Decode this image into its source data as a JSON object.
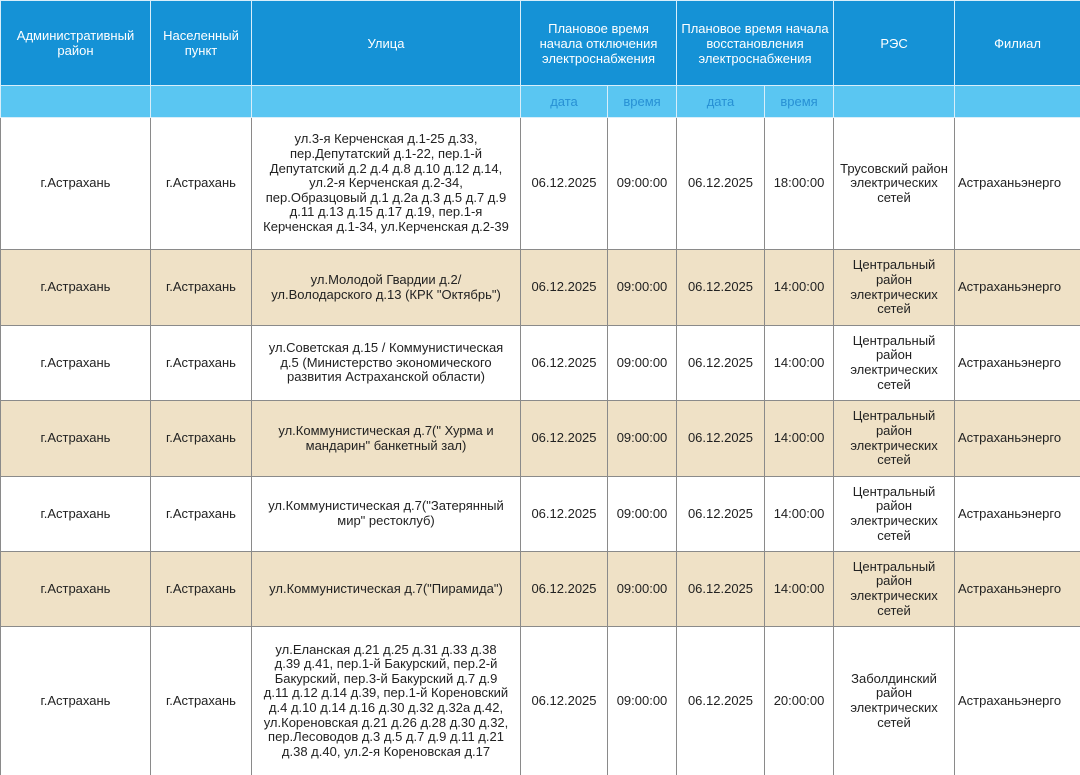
{
  "table": {
    "header": [
      "Административный район",
      "Населенный пункт",
      "Улица",
      "Плановое время начала отключения электроснабжения",
      "Плановое время начала восстановления электроснабжения",
      "РЭС",
      "Филиал"
    ],
    "subheader": [
      "дата",
      "время",
      "дата",
      "время"
    ],
    "rows": [
      [
        "г.Астрахань",
        "г.Астрахань",
        "ул.3-я Керченская д.1-25 д.33, пер.Депутатский д.1-22, пер.1-й Депутатский д.2 д.4 д.8 д.10 д.12 д.14, ул.2-я Керченская д.2-34, пер.Образцовый д.1 д.2а д.3 д.5 д.7 д.9 д.11 д.13 д.15 д.17 д.19, пер.1-я Керченская д.1-34, ул.Керченская д.2-39",
        "06.12.2025",
        "09:00:00",
        "06.12.2025",
        "18:00:00",
        "Трусовский район электрических сетей",
        "Астраханьэнерго"
      ],
      [
        "г.Астрахань",
        "г.Астрахань",
        "ул.Молодой Гвардии д.2/ ул.Володарского д.13 (КРК \"Октябрь\")",
        "06.12.2025",
        "09:00:00",
        "06.12.2025",
        "14:00:00",
        "Центральный район электрических сетей",
        "Астраханьэнерго"
      ],
      [
        "г.Астрахань",
        "г.Астрахань",
        "ул.Советская д.15 / Коммунистическая д.5 (Министерство экономического развития Астраханской области)",
        "06.12.2025",
        "09:00:00",
        "06.12.2025",
        "14:00:00",
        "Центральный район электрических сетей",
        "Астраханьэнерго"
      ],
      [
        "г.Астрахань",
        "г.Астрахань",
        "ул.Коммунистическая д.7(\" Хурма и мандарин\" банкетный зал)",
        "06.12.2025",
        "09:00:00",
        "06.12.2025",
        "14:00:00",
        "Центральный район электрических сетей",
        "Астраханьэнерго"
      ],
      [
        "г.Астрахань",
        "г.Астрахань",
        "ул.Коммунистическая д.7(\"Затерянный мир\" рестоклуб)",
        "06.12.2025",
        "09:00:00",
        "06.12.2025",
        "14:00:00",
        "Центральный район электрических сетей",
        "Астраханьэнерго"
      ],
      [
        "г.Астрахань",
        "г.Астрахань",
        "ул.Коммунистическая д.7(\"Пирамида\")",
        "06.12.2025",
        "09:00:00",
        "06.12.2025",
        "14:00:00",
        "Центральный район электрических сетей",
        "Астраханьэнерго"
      ],
      [
        "г.Астрахань",
        "г.Астрахань",
        "ул.Еланская д.21 д.25 д.31 д.33 д.38 д.39 д.41, пер.1-й Бакурский, пер.2-й Бакурский, пер.3-й Бакурский д.7 д.9 д.11 д.12 д.14 д.39, пер.1-й Кореновский д.4 д.10 д.14 д.16 д.30 д.32 д.32а д.42, ул.Кореновская д.21 д.26 д.28 д.30 д.32, пер.Лесоводов д.3 д.5 д.7 д.9 д.11 д.21 д.38 д.40, ул.2-я Кореновская д.17",
        "06.12.2025",
        "09:00:00",
        "06.12.2025",
        "20:00:00",
        "Заболдинский район электрических сетей",
        "Астраханьэнерго"
      ]
    ]
  }
}
